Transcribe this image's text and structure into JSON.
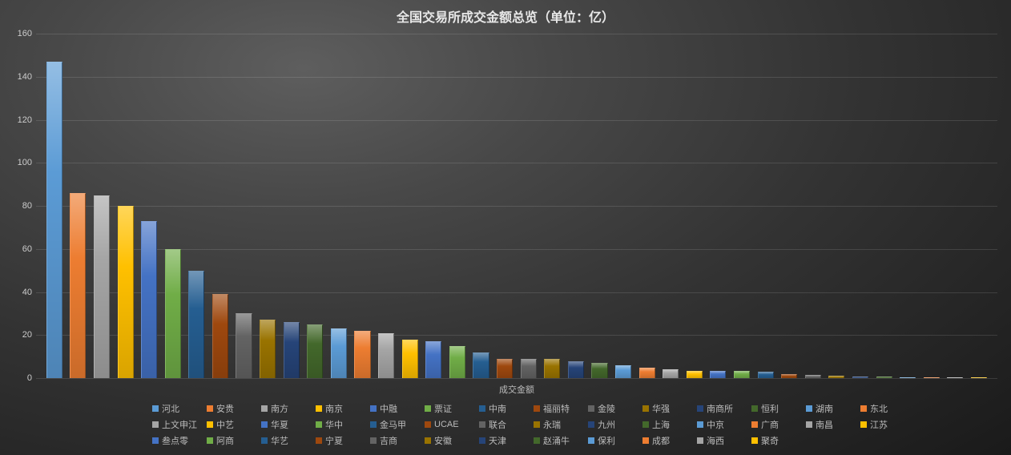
{
  "chart": {
    "type": "bar",
    "title": "全国交易所成交金额总览（单位：亿）",
    "title_fontsize": 16,
    "title_color": "#e8e8e8",
    "xaxis_label": "成交金额",
    "label_color": "#bbbbbb",
    "label_fontsize": 11,
    "ylim": [
      0,
      160
    ],
    "ytick_step": 20,
    "yticks": [
      0,
      20,
      40,
      60,
      80,
      100,
      120,
      140,
      160
    ],
    "grid_color": "rgba(255,255,255,0.12)",
    "background": "radial-gradient #5e5e5e → #1a1a1a",
    "bar_width": 0.68,
    "series": [
      {
        "label": "河北",
        "value": 147,
        "color": "#5b9bd5"
      },
      {
        "label": "安贵",
        "value": 86,
        "color": "#ed7d31"
      },
      {
        "label": "南方",
        "value": 85,
        "color": "#a5a5a5"
      },
      {
        "label": "南京",
        "value": 80,
        "color": "#ffc000"
      },
      {
        "label": "中融",
        "value": 73,
        "color": "#4472c4"
      },
      {
        "label": "票证",
        "value": 60,
        "color": "#70ad47"
      },
      {
        "label": "中南",
        "value": 50,
        "color": "#255e91"
      },
      {
        "label": "福丽特",
        "value": 39,
        "color": "#9e480e"
      },
      {
        "label": "金陵",
        "value": 30,
        "color": "#636363"
      },
      {
        "label": "华强",
        "value": 27,
        "color": "#997300"
      },
      {
        "label": "南商所",
        "value": 26,
        "color": "#264478"
      },
      {
        "label": "恒利",
        "value": 25,
        "color": "#43682b"
      },
      {
        "label": "湖南",
        "value": 23,
        "color": "#5b9bd5"
      },
      {
        "label": "东北",
        "value": 22,
        "color": "#ed7d31"
      },
      {
        "label": "上文申江",
        "value": 21,
        "color": "#a5a5a5"
      },
      {
        "label": "中艺",
        "value": 18,
        "color": "#ffc000"
      },
      {
        "label": "华夏",
        "value": 17,
        "color": "#4472c4"
      },
      {
        "label": "华中",
        "value": 15,
        "color": "#70ad47"
      },
      {
        "label": "金马甲",
        "value": 12,
        "color": "#255e91"
      },
      {
        "label": "UCAE",
        "value": 9,
        "color": "#9e480e"
      },
      {
        "label": "联合",
        "value": 9,
        "color": "#636363"
      },
      {
        "label": "永瑞",
        "value": 9,
        "color": "#997300"
      },
      {
        "label": "九州",
        "value": 8,
        "color": "#264478"
      },
      {
        "label": "上海",
        "value": 7,
        "color": "#43682b"
      },
      {
        "label": "中京",
        "value": 6,
        "color": "#5b9bd5"
      },
      {
        "label": "广商",
        "value": 5,
        "color": "#ed7d31"
      },
      {
        "label": "南昌",
        "value": 4,
        "color": "#a5a5a5"
      },
      {
        "label": "江苏",
        "value": 3.5,
        "color": "#ffc000"
      },
      {
        "label": "叁点零",
        "value": 3.5,
        "color": "#4472c4"
      },
      {
        "label": "阿商",
        "value": 3.2,
        "color": "#70ad47"
      },
      {
        "label": "华艺",
        "value": 3,
        "color": "#255e91"
      },
      {
        "label": "宁夏",
        "value": 2,
        "color": "#9e480e"
      },
      {
        "label": "吉商",
        "value": 1.5,
        "color": "#636363"
      },
      {
        "label": "安徽",
        "value": 1,
        "color": "#997300"
      },
      {
        "label": "天津",
        "value": 0.8,
        "color": "#264478"
      },
      {
        "label": "赵涌牛",
        "value": 0.6,
        "color": "#43682b"
      },
      {
        "label": "保利",
        "value": 0.5,
        "color": "#5b9bd5"
      },
      {
        "label": "成都",
        "value": 0.4,
        "color": "#ed7d31"
      },
      {
        "label": "海西",
        "value": 0.3,
        "color": "#a5a5a5"
      },
      {
        "label": "聚奇",
        "value": 0.2,
        "color": "#ffc000"
      }
    ]
  }
}
